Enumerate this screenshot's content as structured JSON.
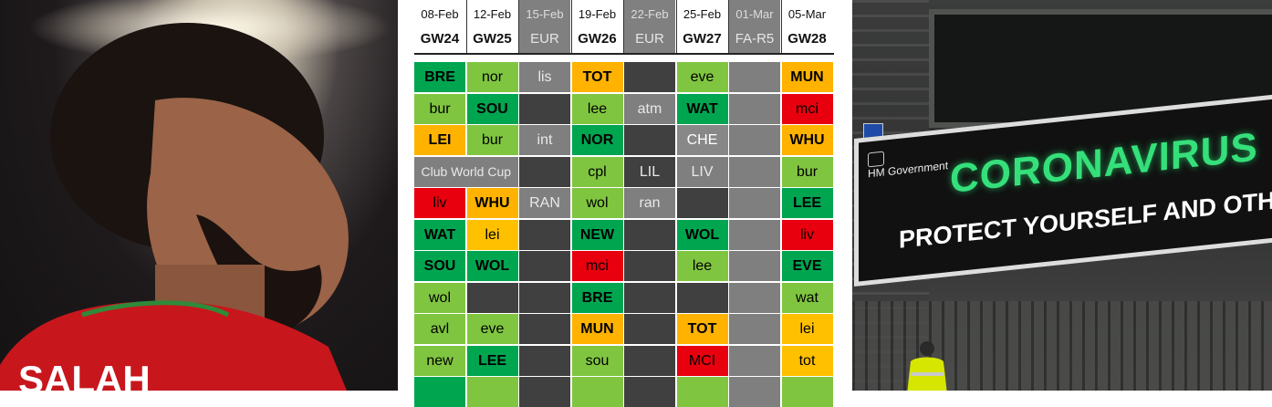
{
  "left_photo": {
    "shirt_text": "SALAH"
  },
  "fixtures": {
    "header": [
      {
        "date": "08-Feb",
        "gw": "GW24",
        "style": "norm"
      },
      {
        "date": "12-Feb",
        "gw": "GW25",
        "style": "norm"
      },
      {
        "date": "15-Feb",
        "gw": "EUR",
        "style": "blank"
      },
      {
        "date": "19-Feb",
        "gw": "GW26",
        "style": "norm"
      },
      {
        "date": "22-Feb",
        "gw": "EUR",
        "style": "blank"
      },
      {
        "date": "25-Feb",
        "gw": "GW27",
        "style": "norm"
      },
      {
        "date": "01-Mar",
        "gw": "FA-R5",
        "style": "blank"
      },
      {
        "date": "05-Mar",
        "gw": "GW28",
        "style": "norm"
      }
    ],
    "rows": [
      [
        {
          "t": "BRE",
          "c": "dg"
        },
        {
          "t": "nor",
          "c": "lg"
        },
        {
          "t": "lis",
          "c": "g1"
        },
        {
          "t": "TOT",
          "c": "or"
        },
        {
          "t": "",
          "c": "g2"
        },
        {
          "t": "eve",
          "c": "lg"
        },
        {
          "t": "",
          "c": "g1"
        },
        {
          "t": "MUN",
          "c": "or"
        }
      ],
      [
        {
          "t": "bur",
          "c": "lg"
        },
        {
          "t": "SOU",
          "c": "dg"
        },
        {
          "t": "",
          "c": "g2"
        },
        {
          "t": "lee",
          "c": "lg"
        },
        {
          "t": "atm",
          "c": "g1"
        },
        {
          "t": "WAT",
          "c": "dg"
        },
        {
          "t": "",
          "c": "g1"
        },
        {
          "t": "mci",
          "c": "rd"
        }
      ],
      [
        {
          "t": "LEI",
          "c": "or"
        },
        {
          "t": "bur",
          "c": "lg"
        },
        {
          "t": "int",
          "c": "g1"
        },
        {
          "t": "NOR",
          "c": "dg"
        },
        {
          "t": "",
          "c": "g2"
        },
        {
          "t": "CHE",
          "c": "g3"
        },
        {
          "t": "",
          "c": "g1"
        },
        {
          "t": "WHU",
          "c": "or"
        }
      ],
      [
        {
          "t": "Club World Cup",
          "c": "g1",
          "span": 2
        },
        {
          "t": "",
          "c": "g2"
        },
        {
          "t": "cpl",
          "c": "lg"
        },
        {
          "t": "LIL",
          "c": "g2"
        },
        {
          "t": "LIV",
          "c": "g1"
        },
        {
          "t": "",
          "c": "g1"
        },
        {
          "t": "bur",
          "c": "lg"
        }
      ],
      [
        {
          "t": "liv",
          "c": "rd"
        },
        {
          "t": "WHU",
          "c": "or"
        },
        {
          "t": "RAN",
          "c": "g1"
        },
        {
          "t": "wol",
          "c": "lg"
        },
        {
          "t": "ran",
          "c": "g1"
        },
        {
          "t": "",
          "c": "g2"
        },
        {
          "t": "",
          "c": "g1"
        },
        {
          "t": "LEE",
          "c": "dg"
        }
      ],
      [
        {
          "t": "WAT",
          "c": "dg"
        },
        {
          "t": "lei",
          "c": "yl"
        },
        {
          "t": "",
          "c": "g2"
        },
        {
          "t": "NEW",
          "c": "dg"
        },
        {
          "t": "",
          "c": "g2"
        },
        {
          "t": "WOL",
          "c": "dg"
        },
        {
          "t": "",
          "c": "g1"
        },
        {
          "t": "liv",
          "c": "rd"
        }
      ],
      [
        {
          "t": "SOU",
          "c": "dg"
        },
        {
          "t": "WOL",
          "c": "dg"
        },
        {
          "t": "",
          "c": "g2"
        },
        {
          "t": "mci",
          "c": "rd"
        },
        {
          "t": "",
          "c": "g2"
        },
        {
          "t": "lee",
          "c": "lg"
        },
        {
          "t": "",
          "c": "g1"
        },
        {
          "t": "EVE",
          "c": "dg"
        }
      ],
      [
        {
          "t": "wol",
          "c": "lg"
        },
        {
          "t": "",
          "c": "g2"
        },
        {
          "t": "",
          "c": "g2"
        },
        {
          "t": "BRE",
          "c": "dg"
        },
        {
          "t": "",
          "c": "g2"
        },
        {
          "t": "",
          "c": "g2"
        },
        {
          "t": "",
          "c": "g1"
        },
        {
          "t": "wat",
          "c": "lg"
        }
      ],
      [
        {
          "t": "avl",
          "c": "lg"
        },
        {
          "t": "eve",
          "c": "lg"
        },
        {
          "t": "",
          "c": "g2"
        },
        {
          "t": "MUN",
          "c": "or"
        },
        {
          "t": "",
          "c": "g2"
        },
        {
          "t": "TOT",
          "c": "or"
        },
        {
          "t": "",
          "c": "g1"
        },
        {
          "t": "lei",
          "c": "yl"
        }
      ],
      [
        {
          "t": "new",
          "c": "lg"
        },
        {
          "t": "LEE",
          "c": "dg"
        },
        {
          "t": "",
          "c": "g2"
        },
        {
          "t": "sou",
          "c": "lg"
        },
        {
          "t": "",
          "c": "g2"
        },
        {
          "t": "MCI",
          "c": "rd"
        },
        {
          "t": "",
          "c": "g1"
        },
        {
          "t": "tot",
          "c": "yl"
        }
      ],
      [
        {
          "t": "",
          "c": "dg"
        },
        {
          "t": "",
          "c": "lg"
        },
        {
          "t": "",
          "c": "g2"
        },
        {
          "t": "",
          "c": "lg"
        },
        {
          "t": "",
          "c": "g2"
        },
        {
          "t": "",
          "c": "lg"
        },
        {
          "t": "",
          "c": "g1"
        },
        {
          "t": "",
          "c": "lg"
        }
      ]
    ]
  },
  "right_photo": {
    "board_org": "HM Government",
    "board_headline": "CORONAVIRUS",
    "board_subline": "PROTECT YOURSELF AND OTHERS",
    "board_edge_letter": "N"
  }
}
